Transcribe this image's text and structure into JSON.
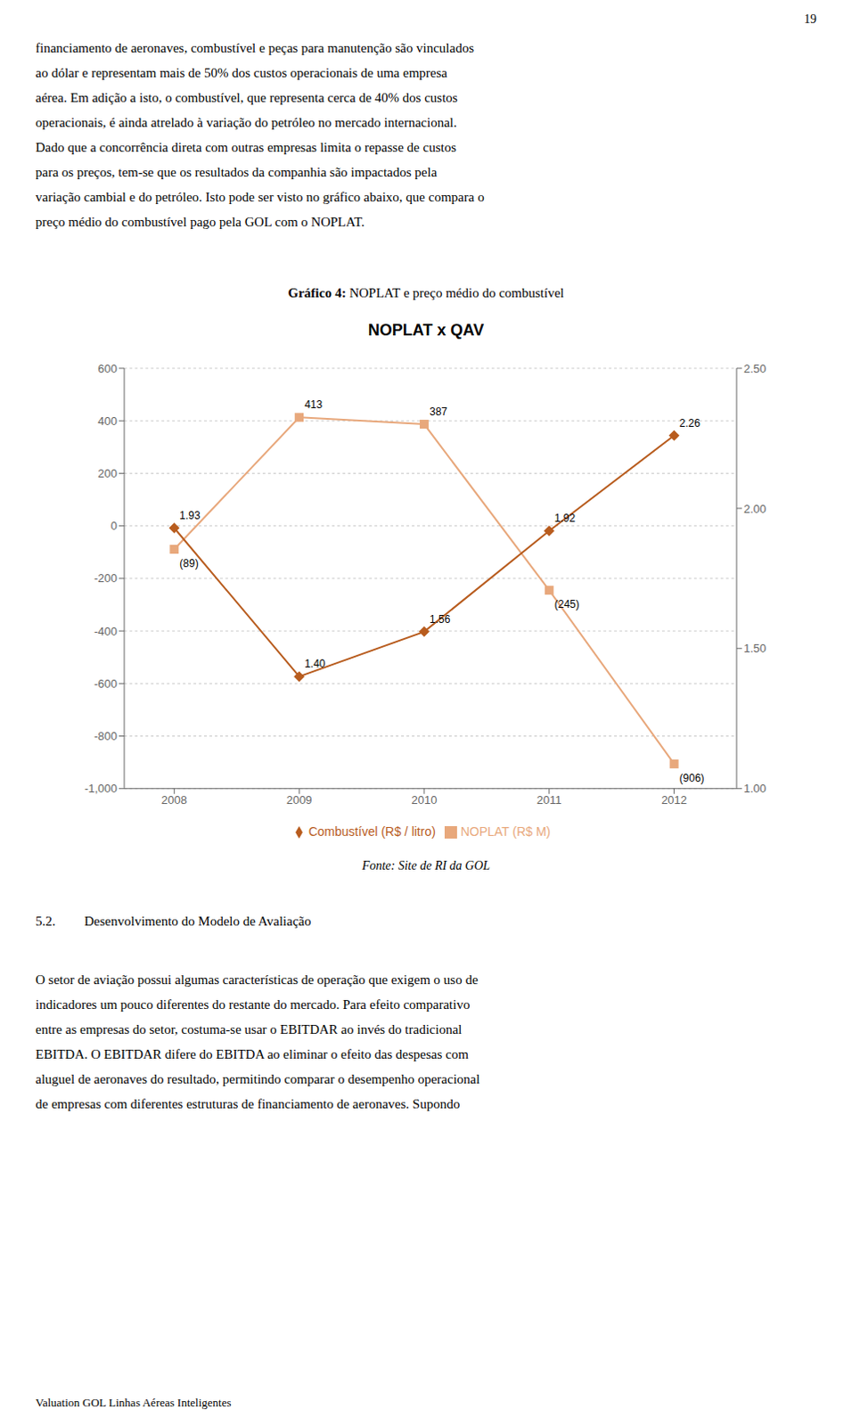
{
  "chart_data": {
    "type": "line",
    "title": "NOPLAT x QAV",
    "x": [
      2008,
      2009,
      2010,
      2011,
      2012
    ],
    "xlim": [
      2007.6,
      2012.5
    ],
    "xticks": [
      2008,
      2009,
      2010,
      2011,
      2012
    ],
    "ylim": [
      -1000,
      600
    ],
    "yticks": [
      {
        "value": -1000,
        "label": "-1,000"
      },
      -800,
      -600,
      -400,
      -200,
      0,
      200,
      400,
      600
    ],
    "y2lim": [
      1.0,
      2.5
    ],
    "y2ticks": [
      {
        "value": 1.0,
        "label": "1.00"
      },
      {
        "value": 1.5,
        "label": "1.50"
      },
      {
        "value": 2.0,
        "label": "2.00"
      },
      {
        "value": 2.5,
        "label": "2.50"
      }
    ],
    "grid": true,
    "legend": "bottom",
    "data_labels": true,
    "series": [
      {
        "name": "NOPLAT (R$ M)",
        "color": "#e8a87c",
        "marker": "square",
        "values": [
          -89,
          413,
          387,
          -245,
          -906
        ],
        "value_labels": [
          "(89)",
          "413",
          "387",
          "(245)",
          "(906)"
        ]
      },
      {
        "name": "Combustível (R$ / litro)",
        "color": "#b85c1e",
        "marker": "diamond",
        "axis": "y2",
        "values": [
          1.93,
          1.4,
          1.56,
          1.92,
          2.26
        ],
        "value_labels": [
          "1.93",
          "1.40",
          "1.56",
          "1.92",
          "2.26"
        ]
      }
    ],
    "annotations": [
      "19",
      "financiamento de aeronaves, combustível e peças para manutenção são vinculados",
      "ao dólar e representam mais de 50% dos custos operacionais de uma empresa",
      "aérea. Em adição a isto, o combustível, que representa cerca de 40% dos custos",
      "operacionais, é ainda atrelado à variação do petróleo no mercado internacional.",
      "Dado que a concorrência direta com outras empresas limita o repasse de custos",
      "para os preços, tem-se que os resultados da companhia são impactados pela",
      "variação cambial e do petróleo. Isto pode ser visto no gráfico abaixo, que compara o",
      "preço médio do combustível pago pela GOL com o NOPLAT.",
      "Gráfico 4:",
      "NOPLAT e preço médio do combustível",
      "Fonte: Site de RI da GOL",
      "5.2.",
      "Desenvolvimento do Modelo de Avaliação",
      "O setor de aviação possui algumas características de operação que exigem o uso de",
      "indicadores um pouco diferentes do restante do mercado. Para efeito comparativo",
      "entre as empresas do setor, costuma-se usar o EBITDAR ao invés do tradicional",
      "EBITDA. O EBITDAR difere do EBITDA ao eliminar o efeito das despesas com",
      "aluguel de aeronaves do resultado, permitindo comparar o desempenho operacional",
      "de empresas com diferentes estruturas de financiamento de aeronaves. Supondo",
      "Valuation GOL Linhas Aéreas Inteligentes"
    ]
  }
}
